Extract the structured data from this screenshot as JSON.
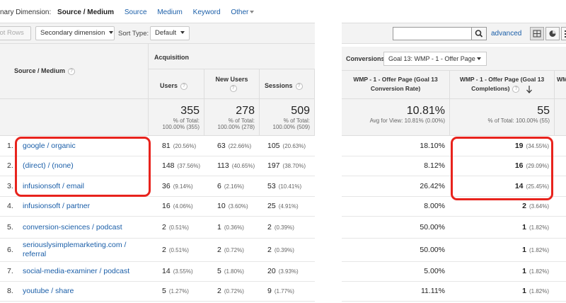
{
  "dimension_bar": {
    "label": "nary Dimension:",
    "selected": "Source / Medium",
    "links": [
      "Source",
      "Medium",
      "Keyword"
    ],
    "other": "Other"
  },
  "toolbar": {
    "plot_rows": "Plot Rows",
    "secondary_dimension": "Secondary dimension",
    "sort_type_label": "Sort Type:",
    "sort_type_value": "Default",
    "search_value": "",
    "advanced": "advanced"
  },
  "conversions": {
    "label": "Conversions",
    "goal": "Goal 13: WMP - 1 - Offer Page"
  },
  "headers": {
    "source_medium": "Source / Medium",
    "acquisition": "Acquisition",
    "users": "Users",
    "new_users": "New Users",
    "sessions": "Sessions",
    "conv_rate": "WMP - 1 - Offer Page (Goal 13 Conversion Rate)",
    "conv_rate_l1": "WMP - 1 - Offer Page (Goal 13",
    "conv_rate_l2": "Conversion Rate)",
    "completions_l1": "WMP - 1 - Offer Page (Goal 13",
    "completions_l2": "Completions)",
    "next_col": "WM"
  },
  "totals": {
    "users": "355",
    "users_sub1": "% of Total:",
    "users_sub2": "100.00% (355)",
    "new_users": "278",
    "new_users_sub1": "% of Total:",
    "new_users_sub2": "100.00% (278)",
    "sessions": "509",
    "sessions_sub1": "% of Total:",
    "sessions_sub2": "100.00% (509)",
    "conv_rate": "10.81%",
    "conv_rate_sub": "Avg for View: 10.81% (0.00%)",
    "completions": "55",
    "completions_sub": "% of Total: 100.00% (55)"
  },
  "rows": [
    {
      "n": "1.",
      "src": "google / organic",
      "users": "81",
      "users_p": "(20.56%)",
      "new": "63",
      "new_p": "(22.66%)",
      "sess": "105",
      "sess_p": "(20.63%)",
      "rate": "18.10%",
      "comp": "19",
      "comp_p": "(34.55%)"
    },
    {
      "n": "2.",
      "src": "(direct) / (none)",
      "users": "148",
      "users_p": "(37.56%)",
      "new": "113",
      "new_p": "(40.65%)",
      "sess": "197",
      "sess_p": "(38.70%)",
      "rate": "8.12%",
      "comp": "16",
      "comp_p": "(29.09%)"
    },
    {
      "n": "3.",
      "src": "infusionsoft / email",
      "users": "36",
      "users_p": "(9.14%)",
      "new": "6",
      "new_p": "(2.16%)",
      "sess": "53",
      "sess_p": "(10.41%)",
      "rate": "26.42%",
      "comp": "14",
      "comp_p": "(25.45%)"
    },
    {
      "n": "4.",
      "src": "infusionsoft / partner",
      "users": "16",
      "users_p": "(4.06%)",
      "new": "10",
      "new_p": "(3.60%)",
      "sess": "25",
      "sess_p": "(4.91%)",
      "rate": "8.00%",
      "comp": "2",
      "comp_p": "(3.64%)"
    },
    {
      "n": "5.",
      "src": "conversion-sciences / podcast",
      "users": "2",
      "users_p": "(0.51%)",
      "new": "1",
      "new_p": "(0.36%)",
      "sess": "2",
      "sess_p": "(0.39%)",
      "rate": "50.00%",
      "comp": "1",
      "comp_p": "(1.82%)"
    },
    {
      "n": "6.",
      "src": "seriouslysimplemarketing.com /",
      "src2": "referral",
      "users": "2",
      "users_p": "(0.51%)",
      "new": "2",
      "new_p": "(0.72%)",
      "sess": "2",
      "sess_p": "(0.39%)",
      "rate": "50.00%",
      "comp": "1",
      "comp_p": "(1.82%)"
    },
    {
      "n": "7.",
      "src": "social-media-examiner / podcast",
      "users": "14",
      "users_p": "(3.55%)",
      "new": "5",
      "new_p": "(1.80%)",
      "sess": "20",
      "sess_p": "(3.93%)",
      "rate": "5.00%",
      "comp": "1",
      "comp_p": "(1.82%)"
    },
    {
      "n": "8.",
      "src": "youtube / share",
      "users": "5",
      "users_p": "(1.27%)",
      "new": "2",
      "new_p": "(0.72%)",
      "sess": "9",
      "sess_p": "(1.77%)",
      "rate": "11.11%",
      "comp": "1",
      "comp_p": "(1.82%)"
    }
  ]
}
